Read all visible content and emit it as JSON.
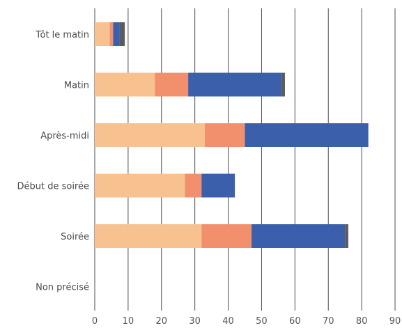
{
  "chart_data": {
    "type": "bar",
    "orientation": "horizontal",
    "stacked": true,
    "categories": [
      "Tôt le matin",
      "Matin",
      "Après-midi",
      "Début de soirée",
      "Soirée",
      "Non précisé"
    ],
    "series": [
      {
        "color": "#F7C28F",
        "values": [
          4.5,
          18,
          33,
          27,
          32,
          0
        ]
      },
      {
        "color": "#F2906E",
        "values": [
          1,
          10,
          12,
          5,
          15,
          0
        ]
      },
      {
        "color": "#3B5FAB",
        "values": [
          2,
          28,
          37,
          10,
          28,
          0
        ]
      },
      {
        "color": "#5C5C5C",
        "values": [
          1.5,
          1,
          0,
          0,
          1,
          0
        ]
      }
    ],
    "xlim": [
      0,
      90
    ],
    "xticks": [
      0,
      10,
      20,
      30,
      40,
      50,
      60,
      70,
      80,
      90
    ],
    "grid": "vertical",
    "legend": "none",
    "title": "",
    "xlabel": "",
    "ylabel": ""
  }
}
